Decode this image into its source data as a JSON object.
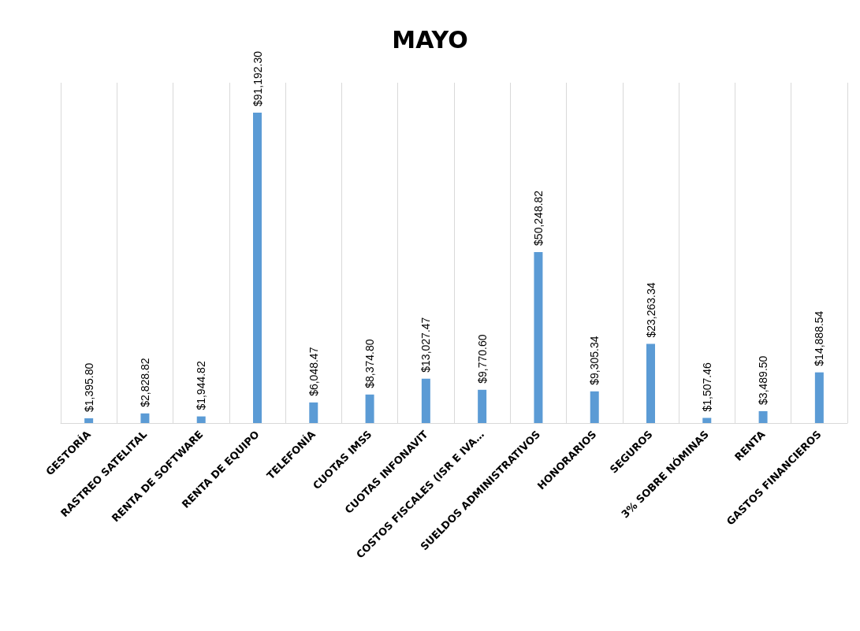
{
  "chart_data": {
    "type": "bar",
    "title": "MAYO",
    "categories": [
      "GESTORÍA",
      "RASTREO SATELITAL",
      "RENTA DE SOFTWARE",
      "RENTA DE EQUIPO",
      "TELEFONÍA",
      "CUOTAS IMSS",
      "CUOTAS INFONAVIT",
      "COSTOS FISCALES (ISR E IVA…",
      "SUELDOS ADMINISTRATIVOS",
      "HONORARIOS",
      "SEGUROS",
      "3% SOBRE NÓMINAS",
      "RENTA",
      "GASTOS FINANCIEROS"
    ],
    "values": [
      1395.8,
      2828.82,
      1944.82,
      91192.3,
      6048.47,
      8374.8,
      13027.47,
      9770.6,
      50248.82,
      9305.34,
      23263.34,
      1507.46,
      3489.5,
      14888.54
    ],
    "value_labels": [
      "$1,395.80",
      "$2,828.82",
      "$1,944.82",
      "$91,192.30",
      "$6,048.47",
      "$8,374.80",
      "$13,027.47",
      "$9,770.60",
      "$50,248.82",
      "$9,305.34",
      "$23,263.34",
      "$1,507.46",
      "$3,489.50",
      "$14,888.54"
    ],
    "color": "#5b9bd5",
    "ylim": [
      0,
      100000
    ],
    "grid": "x",
    "tick_labels": "x"
  }
}
